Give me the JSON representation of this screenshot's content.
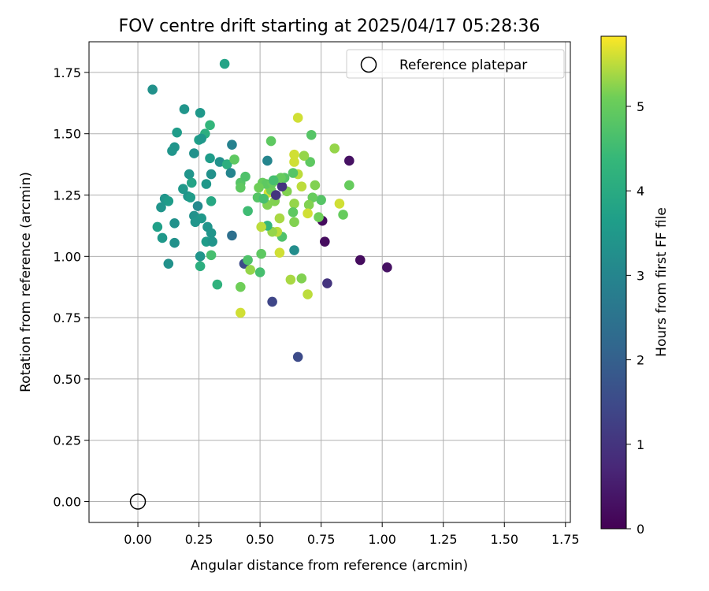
{
  "chart_data": {
    "type": "scatter",
    "title": "FOV centre drift starting at 2025/04/17 05:28:36",
    "xlabel": "Angular distance from reference (arcmin)",
    "ylabel": "Rotation from reference (arcmin)",
    "xlim": [
      -0.2,
      1.77
    ],
    "ylim": [
      -0.085,
      1.875
    ],
    "xticks": [
      "0.00",
      "0.25",
      "0.50",
      "0.75",
      "1.00",
      "1.25",
      "1.50",
      "1.75"
    ],
    "yticks": [
      "0.00",
      "0.25",
      "0.50",
      "0.75",
      "1.00",
      "1.25",
      "1.50",
      "1.75"
    ],
    "grid": true,
    "legend": {
      "position": "top-right",
      "entries": [
        "Reference platepar"
      ]
    },
    "reference_point": {
      "x": 0.0,
      "y": 0.0
    },
    "colorbar": {
      "label": "Hours from first FF file",
      "min": 0,
      "max": 5.83,
      "ticks": [
        "0",
        "1",
        "2",
        "3",
        "4",
        "5"
      ],
      "colormap": "viridis"
    },
    "series": [
      {
        "points": [
          {
            "x": 0.355,
            "y": 1.785,
            "c": 3.8
          },
          {
            "x": 0.06,
            "y": 1.68,
            "c": 3.3
          },
          {
            "x": 0.19,
            "y": 1.6,
            "c": 3.4
          },
          {
            "x": 0.255,
            "y": 1.585,
            "c": 3.5
          },
          {
            "x": 0.16,
            "y": 1.505,
            "c": 3.6
          },
          {
            "x": 0.295,
            "y": 1.535,
            "c": 4.3
          },
          {
            "x": 0.275,
            "y": 1.5,
            "c": 4.1
          },
          {
            "x": 0.25,
            "y": 1.475,
            "c": 3.7
          },
          {
            "x": 0.26,
            "y": 1.48,
            "c": 3.5
          },
          {
            "x": 0.15,
            "y": 1.445,
            "c": 3.4
          },
          {
            "x": 0.14,
            "y": 1.43,
            "c": 3.4
          },
          {
            "x": 0.385,
            "y": 1.455,
            "c": 2.9
          },
          {
            "x": 0.23,
            "y": 1.42,
            "c": 3.3
          },
          {
            "x": 0.295,
            "y": 1.4,
            "c": 3.6
          },
          {
            "x": 0.335,
            "y": 1.385,
            "c": 3.3
          },
          {
            "x": 0.365,
            "y": 1.375,
            "c": 4.1
          },
          {
            "x": 0.395,
            "y": 1.395,
            "c": 4.9
          },
          {
            "x": 0.38,
            "y": 1.34,
            "c": 3.0
          },
          {
            "x": 0.3,
            "y": 1.335,
            "c": 3.3
          },
          {
            "x": 0.21,
            "y": 1.335,
            "c": 3.4
          },
          {
            "x": 0.22,
            "y": 1.3,
            "c": 3.8
          },
          {
            "x": 0.28,
            "y": 1.295,
            "c": 3.5
          },
          {
            "x": 0.185,
            "y": 1.275,
            "c": 3.5
          },
          {
            "x": 0.205,
            "y": 1.245,
            "c": 3.4
          },
          {
            "x": 0.215,
            "y": 1.24,
            "c": 3.6
          },
          {
            "x": 0.11,
            "y": 1.235,
            "c": 3.4
          },
          {
            "x": 0.125,
            "y": 1.225,
            "c": 3.6
          },
          {
            "x": 0.3,
            "y": 1.225,
            "c": 3.9
          },
          {
            "x": 0.245,
            "y": 1.205,
            "c": 3.1
          },
          {
            "x": 0.095,
            "y": 1.2,
            "c": 3.4
          },
          {
            "x": 0.23,
            "y": 1.165,
            "c": 3.3
          },
          {
            "x": 0.26,
            "y": 1.155,
            "c": 3.5
          },
          {
            "x": 0.235,
            "y": 1.14,
            "c": 3.4
          },
          {
            "x": 0.15,
            "y": 1.135,
            "c": 3.3
          },
          {
            "x": 0.08,
            "y": 1.12,
            "c": 3.7
          },
          {
            "x": 0.285,
            "y": 1.12,
            "c": 3.4
          },
          {
            "x": 0.3,
            "y": 1.095,
            "c": 3.4
          },
          {
            "x": 0.1,
            "y": 1.075,
            "c": 3.5
          },
          {
            "x": 0.28,
            "y": 1.06,
            "c": 3.6
          },
          {
            "x": 0.305,
            "y": 1.06,
            "c": 3.4
          },
          {
            "x": 0.15,
            "y": 1.055,
            "c": 3.3
          },
          {
            "x": 0.385,
            "y": 1.085,
            "c": 2.4
          },
          {
            "x": 0.255,
            "y": 1.0,
            "c": 3.4
          },
          {
            "x": 0.3,
            "y": 1.005,
            "c": 4.6
          },
          {
            "x": 0.125,
            "y": 0.97,
            "c": 3.3
          },
          {
            "x": 0.255,
            "y": 0.96,
            "c": 4.1
          },
          {
            "x": 0.325,
            "y": 0.885,
            "c": 4.2
          },
          {
            "x": 0.42,
            "y": 0.875,
            "c": 5.1
          },
          {
            "x": 0.42,
            "y": 0.77,
            "c": 5.6
          },
          {
            "x": 0.435,
            "y": 0.97,
            "c": 1.5
          },
          {
            "x": 0.45,
            "y": 0.985,
            "c": 4.7
          },
          {
            "x": 0.46,
            "y": 0.945,
            "c": 5.3
          },
          {
            "x": 0.5,
            "y": 0.935,
            "c": 4.6
          },
          {
            "x": 0.55,
            "y": 0.815,
            "c": 1.4
          },
          {
            "x": 0.655,
            "y": 0.59,
            "c": 1.5
          },
          {
            "x": 0.625,
            "y": 0.905,
            "c": 5.4
          },
          {
            "x": 0.67,
            "y": 0.91,
            "c": 5.2
          },
          {
            "x": 0.695,
            "y": 0.845,
            "c": 5.5
          },
          {
            "x": 0.775,
            "y": 0.89,
            "c": 1.0
          },
          {
            "x": 0.91,
            "y": 0.985,
            "c": 0.2
          },
          {
            "x": 1.02,
            "y": 0.955,
            "c": 0.3
          },
          {
            "x": 0.765,
            "y": 1.06,
            "c": 0.2
          },
          {
            "x": 0.755,
            "y": 1.145,
            "c": 0.2
          },
          {
            "x": 0.865,
            "y": 1.39,
            "c": 0.3
          },
          {
            "x": 0.805,
            "y": 1.44,
            "c": 5.3
          },
          {
            "x": 0.825,
            "y": 1.215,
            "c": 5.6
          },
          {
            "x": 0.84,
            "y": 1.17,
            "c": 5.0
          },
          {
            "x": 0.865,
            "y": 1.29,
            "c": 5.0
          },
          {
            "x": 0.75,
            "y": 1.23,
            "c": 4.8
          },
          {
            "x": 0.725,
            "y": 1.29,
            "c": 5.2
          },
          {
            "x": 0.74,
            "y": 1.16,
            "c": 5.1
          },
          {
            "x": 0.715,
            "y": 1.24,
            "c": 5.0
          },
          {
            "x": 0.7,
            "y": 1.21,
            "c": 5.2
          },
          {
            "x": 0.695,
            "y": 1.175,
            "c": 5.6
          },
          {
            "x": 0.705,
            "y": 1.385,
            "c": 4.9
          },
          {
            "x": 0.71,
            "y": 1.495,
            "c": 4.8
          },
          {
            "x": 0.68,
            "y": 1.41,
            "c": 5.3
          },
          {
            "x": 0.655,
            "y": 1.565,
            "c": 5.6
          },
          {
            "x": 0.64,
            "y": 1.415,
            "c": 5.6
          },
          {
            "x": 0.64,
            "y": 1.385,
            "c": 5.6
          },
          {
            "x": 0.655,
            "y": 1.335,
            "c": 5.5
          },
          {
            "x": 0.635,
            "y": 1.34,
            "c": 4.8
          },
          {
            "x": 0.67,
            "y": 1.285,
            "c": 5.5
          },
          {
            "x": 0.61,
            "y": 1.265,
            "c": 5.2
          },
          {
            "x": 0.64,
            "y": 1.215,
            "c": 5.3
          },
          {
            "x": 0.635,
            "y": 1.18,
            "c": 4.9
          },
          {
            "x": 0.64,
            "y": 1.14,
            "c": 5.2
          },
          {
            "x": 0.64,
            "y": 1.025,
            "c": 3.2
          },
          {
            "x": 0.59,
            "y": 1.08,
            "c": 4.7
          },
          {
            "x": 0.58,
            "y": 1.015,
            "c": 5.6
          },
          {
            "x": 0.57,
            "y": 1.1,
            "c": 5.5
          },
          {
            "x": 0.58,
            "y": 1.155,
            "c": 5.4
          },
          {
            "x": 0.56,
            "y": 1.225,
            "c": 5.2
          },
          {
            "x": 0.55,
            "y": 1.1,
            "c": 5.3
          },
          {
            "x": 0.53,
            "y": 1.125,
            "c": 4.3
          },
          {
            "x": 0.505,
            "y": 1.12,
            "c": 5.5
          },
          {
            "x": 0.535,
            "y": 1.26,
            "c": 5.6
          },
          {
            "x": 0.545,
            "y": 1.27,
            "c": 5.1
          },
          {
            "x": 0.53,
            "y": 1.21,
            "c": 5.2
          },
          {
            "x": 0.51,
            "y": 1.3,
            "c": 5.0
          },
          {
            "x": 0.525,
            "y": 1.295,
            "c": 4.9
          },
          {
            "x": 0.55,
            "y": 1.3,
            "c": 5.0
          },
          {
            "x": 0.565,
            "y": 1.31,
            "c": 5.0
          },
          {
            "x": 0.58,
            "y": 1.31,
            "c": 4.9
          },
          {
            "x": 0.59,
            "y": 1.285,
            "c": 1.0
          },
          {
            "x": 0.6,
            "y": 1.32,
            "c": 4.8
          },
          {
            "x": 0.495,
            "y": 1.28,
            "c": 5.1
          },
          {
            "x": 0.49,
            "y": 1.24,
            "c": 4.8
          },
          {
            "x": 0.505,
            "y": 1.01,
            "c": 4.9
          },
          {
            "x": 0.545,
            "y": 1.47,
            "c": 4.9
          },
          {
            "x": 0.53,
            "y": 1.39,
            "c": 3.0
          },
          {
            "x": 0.585,
            "y": 1.32,
            "c": 5.0
          },
          {
            "x": 0.42,
            "y": 1.3,
            "c": 4.8
          },
          {
            "x": 0.42,
            "y": 1.28,
            "c": 4.9
          },
          {
            "x": 0.44,
            "y": 1.325,
            "c": 4.7
          },
          {
            "x": 0.45,
            "y": 1.185,
            "c": 4.5
          },
          {
            "x": 0.515,
            "y": 1.235,
            "c": 4.6
          },
          {
            "x": 0.565,
            "y": 1.25,
            "c": 1.0
          },
          {
            "x": 0.555,
            "y": 1.31,
            "c": 4.6
          }
        ]
      }
    ]
  }
}
